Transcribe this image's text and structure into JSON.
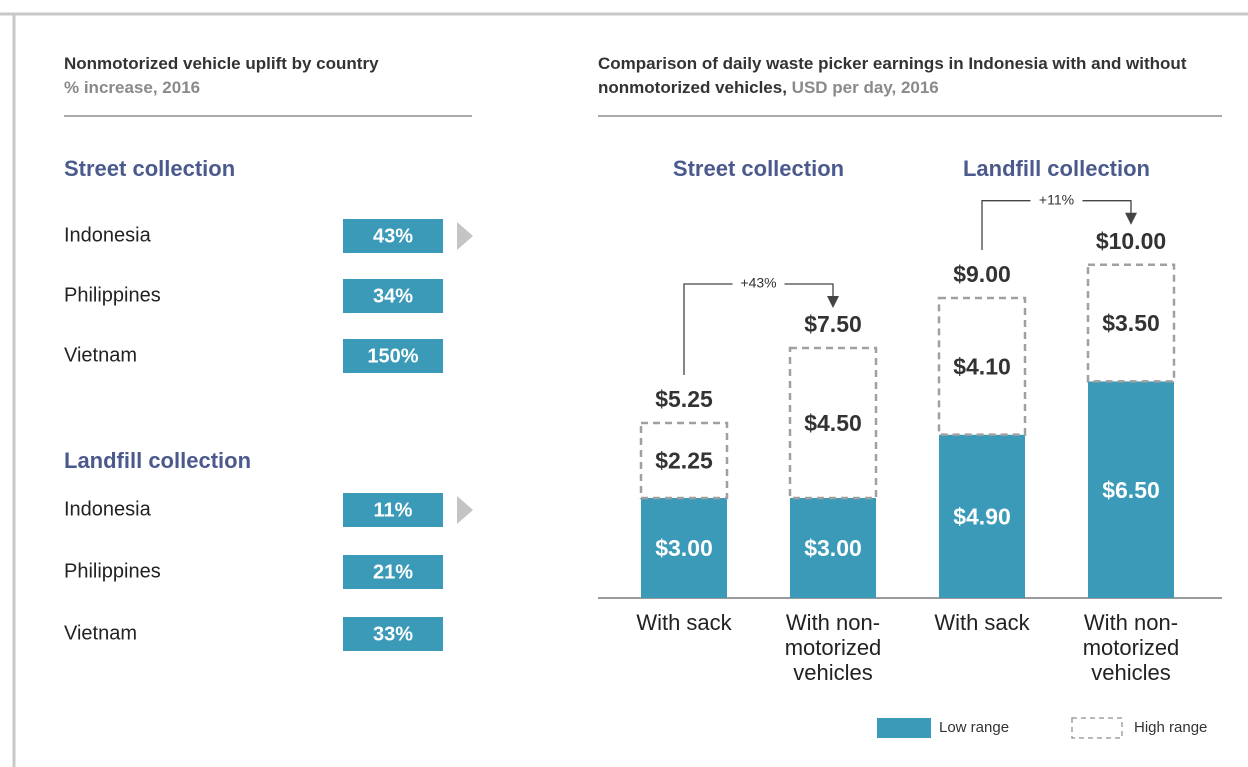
{
  "chart_data": [
    {
      "type": "label-list",
      "title": "Nonmotorized vehicle uplift by country",
      "subtitle": "% increase, 2016",
      "color": "#3a9ab8",
      "heading_color": "#4b5a8c",
      "groups": [
        {
          "name": "Street collection",
          "categories": [
            "Indonesia",
            "Philippines",
            "Vietnam"
          ],
          "values": [
            43,
            34,
            150
          ],
          "value_labels": [
            "43%",
            "34%",
            "150%"
          ]
        },
        {
          "name": "Landfill collection",
          "categories": [
            "Indonesia",
            "Philippines",
            "Vietnam"
          ],
          "values": [
            11,
            21,
            33
          ],
          "value_labels": [
            "11%",
            "21%",
            "33%"
          ]
        }
      ]
    },
    {
      "type": "stacked-bar",
      "title": "Comparison of daily waste picker earnings in Indonesia with and without nonmotorized vehicles,",
      "subtitle": "USD per day, 2016",
      "heading_color": "#4b5a8c",
      "groups": [
        "Street collection",
        "Landfill collection"
      ],
      "categories": [
        "With sack",
        "With non-motorized vehicles",
        "With sack",
        "With non-motorized vehicles"
      ],
      "series": [
        {
          "name": "Low range",
          "color": "#3a9ab8",
          "values": [
            3.0,
            3.0,
            4.9,
            6.5
          ],
          "value_labels": [
            "$3.00",
            "$3.00",
            "$4.90",
            "$6.50"
          ]
        },
        {
          "name": "High range",
          "color": "#a0a0a0",
          "dashed": true,
          "values": [
            2.25,
            4.5,
            4.1,
            3.5
          ],
          "value_labels": [
            "$2.25",
            "$4.50",
            "$4.10",
            "$3.50"
          ]
        }
      ],
      "totals": {
        "values": [
          5.25,
          7.5,
          9.0,
          10.0
        ],
        "value_labels": [
          "$5.25",
          "$7.50",
          "$9.00",
          "$10.00"
        ]
      },
      "annotations": [
        "+43%",
        "+11%"
      ],
      "legend": "bottom-right"
    }
  ]
}
